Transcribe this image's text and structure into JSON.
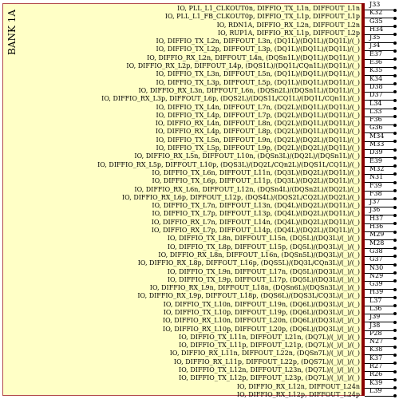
{
  "symbol": {
    "bank_label": "BANK 1A",
    "colors": {
      "body_fill": "#ffffc6",
      "body_border": "#b34a4a",
      "pin_bar": "#8b0000"
    },
    "pins": [
      {
        "name": "IO, PLL_L1_CLKOUT0n, DIFFIO_TX_L1n, DIFFOUT_L1n",
        "number": "J33"
      },
      {
        "name": "IO, PLL_L1_FB_CLKOUT0p, DIFFIO_TX_L1p, DIFFOUT_L1p",
        "number": "K32"
      },
      {
        "name": "IO, RDN1A, DIFFIO_RX_L2n, DIFFOUT_L2n",
        "number": "G35"
      },
      {
        "name": "IO, RUP1A, DIFFIO_RX_L1p, DIFFOUT_L2p",
        "number": "H34"
      },
      {
        "name": "IO, DIFFIO_TX_L2n, DIFFOUT_L3n, (DQ1L)/(DQ1L)/(DQ1L)/(_)",
        "number": "J35"
      },
      {
        "name": "IO, DIFFIO_TX_L2p, DIFFOUT_L3p, (DQ1L)/(DQ1L)/(DQ1L)/(_)",
        "number": "J34"
      },
      {
        "name": "IO, DIFFIO_RX_L2n, DIFFOUT_L4n, (DQSn1L)/(DQ1L)/(DQ1L)/(_)",
        "number": "E37"
      },
      {
        "name": "IO, DIFFIO_RX_L2p, DIFFOUT_L4p, (DQS1L)/(DQ1L/CQn1L)/(DQ1L)/(_)",
        "number": "E36"
      },
      {
        "name": "IO, DIFFIO_TX_L3n, DIFFOUT_L5n, (DQ1L)/(DQ1L)/(DQ1L)/(_)",
        "number": "K35"
      },
      {
        "name": "IO, DIFFIO_TX_L3p, DIFFOUT_L5p, (DQ1L)/(DQ1L)/(DQ1L)/(_)",
        "number": "K34"
      },
      {
        "name": "IO, DIFFIO_RX_L3n, DIFFOUT_L6n, (DQSn2L)/(DQSn1L)/(DQ1L)/(_)",
        "number": "D38"
      },
      {
        "name": "IO, DIFFIO_RX_L3p, DIFFOUT_L6p, (DQS2L)/(DQS1L/CQ1L)/(DQ1L/CQn1L)/(_)",
        "number": "D37"
      },
      {
        "name": "IO, DIFFIO_TX_L4n, DIFFOUT_L7n, (DQ2L)/(DQ1L)/(DQ1L)/(_)",
        "number": "L34"
      },
      {
        "name": "IO, DIFFIO_TX_L4p, DIFFOUT_L7p, (DQ2L)/(DQ1L)/(DQ1L)/(_)",
        "number": "L33"
      },
      {
        "name": "IO, DIFFIO_RX_L4n, DIFFOUT_L8n, (DQ2L)/(DQ1L)/(DQ1L)/(_)",
        "number": "F36"
      },
      {
        "name": "IO, DIFFIO_RX_L4p, DIFFOUT_L8p, (DQ2L)/(DQ1L)/(DQ1L)/(_)",
        "number": "G36"
      },
      {
        "name": "IO, DIFFIO_TX_L5n, DIFFOUT_L9n, (DQ2L)/(DQ2L)/(DQ1L)/(_)",
        "number": "M34"
      },
      {
        "name": "IO, DIFFIO_TX_L5p, DIFFOUT_L9p, (DQ2L)/(DQ2L)/(DQ1L)/(_)",
        "number": "M33"
      },
      {
        "name": "IO, DIFFIO_RX_L5n, DIFFOUT_L10n, (DQSn3L)/(DQ2L)/(DQSn1L)/(_)",
        "number": "D39"
      },
      {
        "name": "IO, DIFFIO_RX_L5p, DIFFOUT_L10p, (DQS3L)/(DQ2L/CQn2L)/(DQS1L/CQ1L)/(_)",
        "number": "E39"
      },
      {
        "name": "IO, DIFFIO_TX_L6n, DIFFOUT_L11n, (DQ3L)/(DQ2L)/(DQ1L)/(_)",
        "number": "M32"
      },
      {
        "name": "IO, DIFFIO_TX_L6p, DIFFOUT_L11p, (DQ3L)/(DQ2L)/(DQ1L)/(_)",
        "number": "N31"
      },
      {
        "name": "IO, DIFFIO_RX_L6n, DIFFOUT_L12n, (DQSn4L)/(DQSn2L)/(DQ2L)/(_)",
        "number": "F39"
      },
      {
        "name": "IO, DIFFIO_RX_L6p, DIFFOUT_L12p, (DQS4L)/(DQS2L/CQ2L)/(DQ2L)/(_)",
        "number": "F38"
      },
      {
        "name": "IO, DIFFIO_TX_L7n, DIFFOUT_L13n, (DQ4L)/(DQ2L)/(DQ1L)/(_)",
        "number": "J37"
      },
      {
        "name": "IO, DIFFIO_TX_L7p, DIFFOUT_L13p, (DQ4L)/(DQ2L)/(DQ1L)/(_)",
        "number": "J36"
      },
      {
        "name": "IO, DIFFIO_RX_L7n, DIFFOUT_L14n, (DQ4L)/(DQ2L)/(DQ1L)/(_)",
        "number": "H37"
      },
      {
        "name": "IO, DIFFIO_RX_L7p, DIFFOUT_L14p, (DQ4L)/(DQ2L)/(DQ1L)/(_)",
        "number": "H36"
      },
      {
        "name": "IO, DIFFIO_TX_L8n, DIFFOUT_L15n, (DQ5L)/(DQ3L)/(_)/(_)",
        "number": "M29"
      },
      {
        "name": "IO, DIFFIO_TX_L8p, DIFFOUT_L15p, (DQ5L)/(DQ3L)/(_)/(_)",
        "number": "M28"
      },
      {
        "name": "IO, DIFFIO_RX_L8n, DIFFOUT_L16n, (DQSn5L)/(DQ3L)/(_)/(_)",
        "number": "G38"
      },
      {
        "name": "IO, DIFFIO_RX_L8p, DIFFOUT_L16p, (DQS5L)/(DQ3L/CQn3L)/(_)/(_)",
        "number": "G37"
      },
      {
        "name": "IO, DIFFIO_TX_L9n, DIFFOUT_L17n, (DQ5L)/(DQ3L)/(_)/(_)",
        "number": "N30"
      },
      {
        "name": "IO, DIFFIO_TX_L9p, DIFFOUT_L17p, (DQ5L)/(DQ3L)/(_)/(_)",
        "number": "N29"
      },
      {
        "name": "IO, DIFFIO_RX_L9n, DIFFOUT_L18n, (DQSn6L)/(DQSn3L)/(_)/(_)",
        "number": "G39"
      },
      {
        "name": "IO, DIFFIO_RX_L9p, DIFFOUT_L18p, (DQS6L)/(DQS3L/CQ3L)/(_)/(_)",
        "number": "H39"
      },
      {
        "name": "IO, DIFFIO_TX_L10n, DIFFOUT_L19n, (DQ6L)/(DQ3L)/(_)/(_)",
        "number": "L37"
      },
      {
        "name": "IO, DIFFIO_TX_L10p, DIFFOUT_L19p, (DQ6L)/(DQ3L)/(_)/(_)",
        "number": "L36"
      },
      {
        "name": "IO, DIFFIO_RX_L10n, DIFFOUT_L20n, (DQ6L)/(DQ3L)/(_)/(_)",
        "number": "J39"
      },
      {
        "name": "IO, DIFFIO_RX_L10p, DIFFOUT_L20p, (DQ6L)/(DQ3L)/(_)/(_)",
        "number": "J38"
      },
      {
        "name": "IO, DIFFIO_TX_L11n, DIFFOUT_L21n, (DQ7L)/(_)/(_)/(_)",
        "number": "P28"
      },
      {
        "name": "IO, DIFFIO_TX_L11p, DIFFOUT_L21p, (DQ7L)/(_)/(_)/(_)",
        "number": "N27"
      },
      {
        "name": "IO, DIFFIO_RX_L11n, DIFFOUT_L22n, (DQSn7L)/(_)/(_)/(_)",
        "number": "K38"
      },
      {
        "name": "IO, DIFFIO_RX_L11p, DIFFOUT_L22p, (DQS7L)/(_)/(_)/(_)",
        "number": "K37"
      },
      {
        "name": "IO, DIFFIO_TX_L12n, DIFFOUT_L23n, (DQ7L)/(_)/(_)/(_)",
        "number": "R27"
      },
      {
        "name": "IO, DIFFIO_TX_L12p, DIFFOUT_L23p, (DQ7L)/(_)/(_)/(_)",
        "number": "R26"
      },
      {
        "name": "IO, DIFFIO_RX_L12n, DIFFOUT_L24n",
        "number": "K39"
      },
      {
        "name": "IO, DIFFIO_RX_L12p, DIFFOUT_L24p",
        "number": "L39"
      }
    ]
  }
}
